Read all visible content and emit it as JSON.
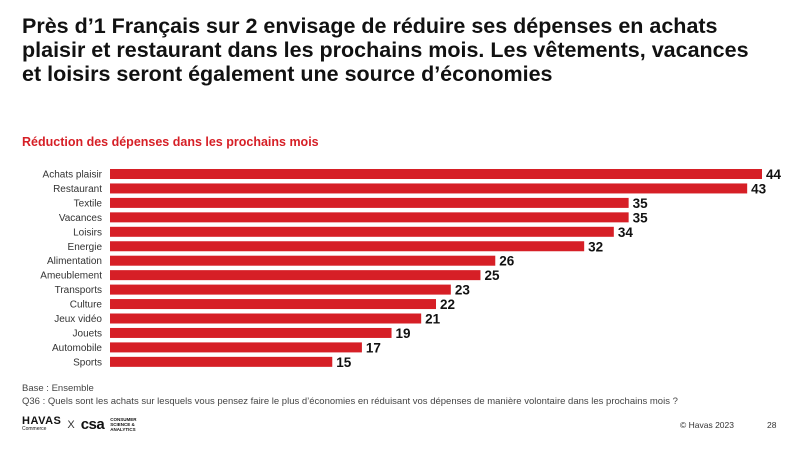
{
  "headline": "Près d’1 Français sur 2 envisage de réduire ses dépenses en achats plaisir et restaurant dans les prochains mois. Les vêtements, vacances et loisirs seront également une source d’économies",
  "chart_data": {
    "type": "bar",
    "orientation": "horizontal",
    "title": "Réduction des dépenses dans les prochains mois",
    "categories": [
      "Achats plaisir",
      "Restaurant",
      "Textile",
      "Vacances",
      "Loisirs",
      "Energie",
      "Alimentation",
      "Ameublement",
      "Transports",
      "Culture",
      "Jeux vidéo",
      "Jouets",
      "Automobile",
      "Sports"
    ],
    "values": [
      44,
      43,
      35,
      35,
      34,
      32,
      26,
      25,
      23,
      22,
      21,
      19,
      17,
      15
    ],
    "bar_color": "#d61f26",
    "xlim": [
      0,
      44
    ],
    "grid": false
  },
  "notes": {
    "base": "Base : Ensemble",
    "question": "Q36 : Quels sont les achats sur lesquels vous pensez faire le plus d’économies en réduisant vos dépenses de manière volontaire dans les prochains mois ?"
  },
  "footer": {
    "havas_logo": "HAVAS",
    "havas_sub": "Commerce",
    "separator": "X",
    "csa_logo": "csa",
    "csa_tagline": "CONSUMER SCIENCE & ANALYTICS",
    "copyright": "© Havas 2023",
    "page": "28"
  }
}
